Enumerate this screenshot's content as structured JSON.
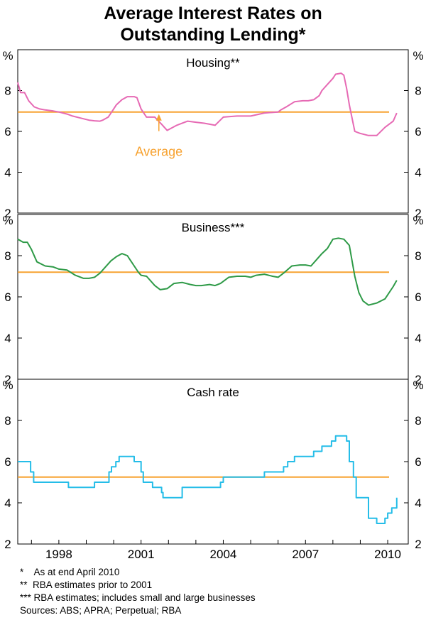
{
  "title_lines": [
    "Average Interest Rates on",
    "Outstanding Lending*"
  ],
  "y_unit_label": "%",
  "x_tick_labels": [
    "1998",
    "2001",
    "2004",
    "2007",
    "2010"
  ],
  "y_tick_labels": [
    "2",
    "4",
    "6",
    "8"
  ],
  "colors": {
    "housing": "#e66ab4",
    "business": "#2e9a47",
    "cash": "#25bde8",
    "average": "#f7a230",
    "frame": "#000000"
  },
  "footnotes": [
    "*    As at end April 2010",
    "**  RBA estimates prior to 2001",
    "*** RBA estimates; includes small and large businesses",
    "Sources: ABS; APRA; Perpetual; RBA"
  ],
  "chart_data": [
    {
      "type": "line",
      "title": "Housing**",
      "ylim": [
        2,
        10
      ],
      "xlim": [
        1996.5,
        2010.75
      ],
      "average": 6.95,
      "annotation": "Average",
      "series": [
        {
          "x": [
            1996.5,
            1996.6,
            1996.75,
            1996.9,
            1997.1,
            1997.3,
            1997.5,
            1997.8,
            1998.0,
            1998.3,
            1998.5,
            1998.8,
            1999.1,
            1999.3,
            1999.5,
            1999.6,
            1999.8,
            1999.95,
            2000.1,
            2000.3,
            2000.5,
            2000.6,
            2000.75,
            2000.85,
            2001.0,
            2001.2,
            2001.5,
            2001.75,
            2001.95,
            2002.3,
            2002.7,
            2003.0,
            2003.3,
            2003.5,
            2003.7,
            2004.0,
            2004.5,
            2004.6,
            2005.0,
            2005.5,
            2006.0,
            2006.1,
            2006.3,
            2006.6,
            2006.9,
            2007.1,
            2007.3,
            2007.5,
            2007.6,
            2007.8,
            2008.0,
            2008.1,
            2008.3,
            2008.4,
            2008.5,
            2008.6,
            2008.8,
            2009.0,
            2009.3,
            2009.6,
            2009.9,
            2010.2,
            2010.33
          ],
          "y": [
            8.4,
            7.9,
            7.9,
            7.5,
            7.2,
            7.1,
            7.05,
            7.0,
            6.95,
            6.85,
            6.75,
            6.65,
            6.55,
            6.52,
            6.5,
            6.55,
            6.7,
            7.0,
            7.3,
            7.55,
            7.7,
            7.7,
            7.7,
            7.65,
            7.1,
            6.7,
            6.7,
            6.35,
            6.05,
            6.3,
            6.5,
            6.45,
            6.4,
            6.35,
            6.3,
            6.7,
            6.75,
            6.75,
            6.75,
            6.9,
            6.95,
            7.05,
            7.2,
            7.45,
            7.5,
            7.5,
            7.55,
            7.75,
            8.0,
            8.3,
            8.6,
            8.8,
            8.85,
            8.75,
            8.1,
            7.3,
            6.0,
            5.9,
            5.8,
            5.8,
            6.2,
            6.5,
            6.9
          ]
        }
      ]
    },
    {
      "type": "line",
      "title": "Business***",
      "ylim": [
        2,
        10
      ],
      "xlim": [
        1996.5,
        2010.75
      ],
      "average": 7.2,
      "series": [
        {
          "x": [
            1996.5,
            1996.7,
            1996.85,
            1997.0,
            1997.2,
            1997.5,
            1997.8,
            1998.0,
            1998.3,
            1998.6,
            1998.9,
            1999.1,
            1999.3,
            1999.5,
            1999.7,
            1999.9,
            2000.1,
            2000.3,
            2000.5,
            2000.6,
            2000.75,
            2000.9,
            2001.0,
            2001.2,
            2001.5,
            2001.7,
            2001.95,
            2002.2,
            2002.5,
            2002.8,
            2003.0,
            2003.2,
            2003.5,
            2003.7,
            2003.9,
            2004.2,
            2004.5,
            2004.8,
            2005.0,
            2005.2,
            2005.5,
            2005.8,
            2006.0,
            2006.2,
            2006.5,
            2006.8,
            2007.0,
            2007.2,
            2007.4,
            2007.6,
            2007.8,
            2008.0,
            2008.2,
            2008.4,
            2008.6,
            2008.8,
            2008.95,
            2009.1,
            2009.3,
            2009.6,
            2009.9,
            2010.2,
            2010.33
          ],
          "y": [
            8.8,
            8.65,
            8.65,
            8.3,
            7.7,
            7.5,
            7.45,
            7.35,
            7.3,
            7.05,
            6.9,
            6.9,
            6.95,
            7.15,
            7.45,
            7.75,
            7.95,
            8.1,
            8.0,
            7.8,
            7.5,
            7.2,
            7.05,
            7.0,
            6.55,
            6.35,
            6.4,
            6.65,
            6.7,
            6.6,
            6.55,
            6.55,
            6.6,
            6.55,
            6.65,
            6.95,
            7.0,
            7.0,
            6.95,
            7.05,
            7.1,
            7.0,
            6.95,
            7.15,
            7.5,
            7.55,
            7.55,
            7.5,
            7.8,
            8.1,
            8.35,
            8.8,
            8.85,
            8.8,
            8.5,
            7.0,
            6.2,
            5.8,
            5.6,
            5.7,
            5.9,
            6.5,
            6.8
          ]
        }
      ]
    },
    {
      "type": "line",
      "title": "Cash rate",
      "ylim": [
        2,
        10
      ],
      "xlim": [
        1996.5,
        2010.75
      ],
      "average": 5.25,
      "step": true,
      "series": [
        {
          "x": [
            1996.5,
            1996.83,
            1996.97,
            1997.08,
            1997.58,
            1997.7,
            1998.0,
            1998.35,
            1998.92,
            1999.3,
            1999.83,
            1999.92,
            2000.08,
            2000.2,
            2000.33,
            2000.67,
            2000.75,
            2000.92,
            2001.0,
            2001.08,
            2001.2,
            2001.42,
            2001.75,
            2001.8,
            2001.9,
            2002.0,
            2002.5,
            2003.0,
            2003.5,
            2003.9,
            2004.0,
            2004.5,
            2004.65,
            2005.0,
            2005.5,
            2006.0,
            2006.2,
            2006.35,
            2006.6,
            2006.85,
            2007.0,
            2007.3,
            2007.6,
            2007.95,
            2008.1,
            2008.2,
            2008.3,
            2008.5,
            2008.6,
            2008.75,
            2008.85,
            2009.0,
            2009.3,
            2009.6,
            2009.75,
            2009.9,
            2010.0,
            2010.15,
            2010.33
          ],
          "y": [
            6.0,
            6.0,
            5.5,
            5.0,
            5.0,
            5.0,
            5.0,
            4.75,
            4.75,
            5.0,
            5.5,
            5.75,
            6.0,
            6.25,
            6.25,
            6.25,
            6.0,
            6.0,
            5.5,
            5.0,
            5.0,
            4.75,
            4.5,
            4.25,
            4.25,
            4.25,
            4.75,
            4.75,
            4.75,
            5.0,
            5.25,
            5.25,
            5.25,
            5.25,
            5.5,
            5.5,
            5.75,
            6.0,
            6.25,
            6.25,
            6.25,
            6.5,
            6.75,
            7.0,
            7.25,
            7.25,
            7.25,
            7.0,
            6.0,
            5.25,
            4.25,
            4.25,
            3.25,
            3.0,
            3.0,
            3.25,
            3.5,
            3.75,
            4.25
          ]
        }
      ]
    }
  ]
}
